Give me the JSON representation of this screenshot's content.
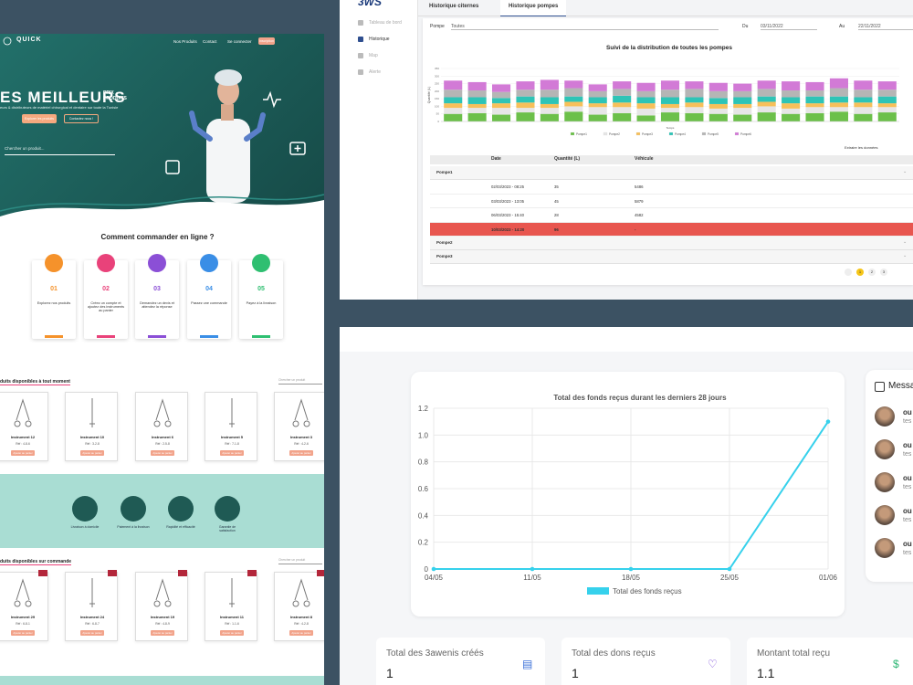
{
  "website": {
    "brand": "QUICK",
    "nav": [
      "Nos Produits",
      "Contact",
      "Se connecter"
    ],
    "nav_button": "Inscription",
    "hero_title": "ES MEILLEURS",
    "hero_title_side": [
      "PRIX",
      "PRODUITS"
    ],
    "hero_subtitle": "eurs & distributeurs de matériel chirurgical et dentaire sur toute la Tunisie",
    "hero_buttons": [
      "Explorer les produits",
      "Contactez nous !"
    ],
    "search_placeholder": "Chercher un produit...",
    "how_title": "Comment commander en ligne ?",
    "steps": [
      {
        "number": "01",
        "text": "Explorez nos produits"
      },
      {
        "number": "02",
        "text": "Créez un compte et ajoutez des instruments au panier"
      },
      {
        "number": "03",
        "text": "Demandez un devis et attendez la réponse"
      },
      {
        "number": "04",
        "text": "Passez une commande"
      },
      {
        "number": "05",
        "text": "Payez à la livraison"
      }
    ],
    "available_title": "duits disponibles à tout moment",
    "section_search": "Chercher un produit",
    "add_button": "Ajouter au panier",
    "available_products": [
      {
        "name": "Instrument 12",
        "ref": "Réf : 4-8-6"
      },
      {
        "name": "Instrument 10",
        "ref": "Réf : 3-2-8"
      },
      {
        "name": "Instrument 6",
        "ref": "Réf : 2-5-8"
      },
      {
        "name": "Instrument 5",
        "ref": "Réf : 7-1-8"
      },
      {
        "name": "Instrument 3",
        "ref": "Réf : 4-2-6"
      }
    ],
    "features": [
      "Livraison à domicile",
      "Paiement à la livraison",
      "Rapidité et efficacité",
      "Garantie de satisfaction"
    ],
    "order_title": "duits disponibles sur commande",
    "order_products": [
      {
        "name": "Instrument 29",
        "ref": "Réf : 6-8-1"
      },
      {
        "name": "Instrument 24",
        "ref": "Réf : 6-8-7"
      },
      {
        "name": "Instrument 19",
        "ref": "Réf : 4-8-9"
      },
      {
        "name": "Instrument 11",
        "ref": "Réf : 1-1-6"
      },
      {
        "name": "Instrument 8",
        "ref": "Réf : 4-2-8"
      }
    ]
  },
  "dashboard": {
    "logo": "3WS",
    "menu": [
      "Tableau de bord",
      "Historique",
      "Map",
      "Alerte"
    ],
    "tabs": [
      "Historique citernes",
      "Historique pompes"
    ],
    "filters": {
      "pump_label": "Pompe",
      "pump_value": "Toutes",
      "from_label": "Du",
      "from_value": "03/11/2022",
      "to_label": "Au",
      "to_value": "22/11/2022"
    },
    "export": "Extraire les données",
    "table": {
      "columns": [
        "Date",
        "Quantité (L)",
        "Véhicule"
      ],
      "groups": [
        {
          "name": "Pompe1",
          "rows": [
            {
              "date": "02/03/2023 - 08:25",
              "quantity": 35,
              "vehicle": "5486"
            },
            {
              "date": "03/03/2023 - 13:05",
              "quantity": 45,
              "vehicle": "5879"
            },
            {
              "date": "06/03/2023 - 15:40",
              "quantity": 28,
              "vehicle": "4582"
            },
            {
              "date": "10/03/2023 - 14:20",
              "quantity": 96,
              "vehicle": "-",
              "alert": true
            }
          ]
        },
        {
          "name": "Pompe2",
          "rows": []
        },
        {
          "name": "Pompe3",
          "rows": []
        }
      ]
    },
    "pages": [
      1,
      2,
      3
    ],
    "current_page": 1
  },
  "chart_data": [
    {
      "type": "bar",
      "stacked": true,
      "title": "Suivi de la distribution de toutes les pompes",
      "y_label": "Quantité (L)",
      "x_label": "Temps",
      "categories": [
        null,
        null,
        null,
        null,
        null,
        null,
        null,
        null,
        null,
        null,
        null,
        null,
        null,
        null,
        null,
        null,
        null,
        null,
        null
      ],
      "ylim": [
        0,
        350
      ],
      "yticks": [
        0,
        50,
        100,
        150,
        200,
        250,
        300,
        350
      ],
      "grid": true,
      "series": [
        {
          "name": "Pompe1",
          "color": "#6cc04a",
          "values": [
            50,
            55,
            45,
            60,
            50,
            65,
            45,
            55,
            40,
            60,
            55,
            50,
            45,
            60,
            50,
            55,
            65,
            50,
            60
          ]
        },
        {
          "name": "Pompe2",
          "color": "#e6e6e6",
          "values": [
            40,
            35,
            45,
            30,
            40,
            35,
            50,
            40,
            45,
            30,
            40,
            35,
            45,
            40,
            35,
            40,
            30,
            45,
            35
          ]
        },
        {
          "name": "Pompe3",
          "color": "#f7c05a",
          "values": [
            30,
            25,
            30,
            35,
            25,
            30,
            25,
            30,
            35,
            25,
            30,
            30,
            25,
            30,
            35,
            25,
            30,
            30,
            25
          ]
        },
        {
          "name": "Pompe4",
          "color": "#2ec4b6",
          "values": [
            40,
            45,
            35,
            40,
            45,
            35,
            40,
            45,
            40,
            45,
            35,
            40,
            45,
            35,
            40,
            45,
            40,
            35,
            45
          ]
        },
        {
          "name": "Pompe5",
          "color": "#b5b5b5",
          "values": [
            50,
            45,
            40,
            45,
            50,
            55,
            40,
            45,
            40,
            50,
            55,
            45,
            40,
            50,
            45,
            40,
            55,
            50,
            45
          ]
        },
        {
          "name": "Pompe6",
          "color": "#d27ad6",
          "values": [
            60,
            55,
            50,
            55,
            65,
            50,
            45,
            50,
            55,
            60,
            50,
            55,
            50,
            55,
            60,
            55,
            65,
            60,
            55
          ]
        }
      ]
    },
    {
      "type": "line",
      "title": "Total des fonds reçus durant les derniers 28 jours",
      "categories": [
        "04/05",
        "11/05",
        "18/05",
        "25/05",
        "01/06"
      ],
      "series": [
        {
          "name": "Total des fonds reçus",
          "color": "#36d1ec",
          "values": [
            0,
            0,
            0,
            0,
            1.1
          ]
        }
      ],
      "ylim": [
        0,
        1.2
      ],
      "yticks": [
        0,
        0.2,
        0.4,
        0.6,
        0.8,
        {
          "value": 1,
          "label": "1.0"
        },
        1.2
      ],
      "grid": true
    }
  ],
  "funds": {
    "messages_title": "Messages",
    "messages": [
      {
        "name": "ou",
        "text": "tes"
      },
      {
        "name": "ou",
        "text": "tes"
      },
      {
        "name": "ou",
        "text": "tes"
      },
      {
        "name": "ou",
        "text": "tes"
      },
      {
        "name": "ou",
        "text": "tes"
      }
    ],
    "stats": [
      {
        "label": "Total des 3awenis créés",
        "value": "1"
      },
      {
        "label": "Total des dons reçus",
        "value": "1"
      },
      {
        "label": "Montant total reçu",
        "value": "1.1"
      }
    ]
  }
}
